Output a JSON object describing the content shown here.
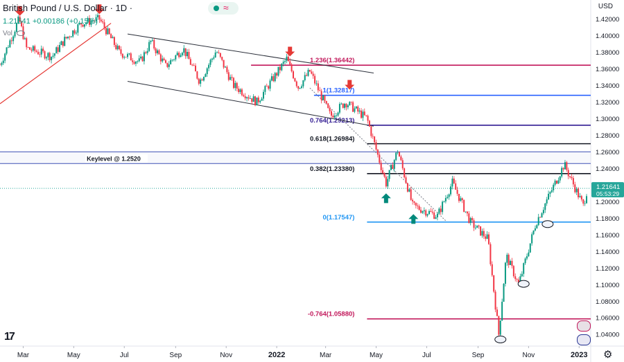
{
  "header": {
    "title": "British Pound / U.S. Dollar · 1D ·",
    "quote": "1.21641 +0.00186 (+0.15%)",
    "vol": "Vol",
    "currency": "USD"
  },
  "colors": {
    "up": "#089981",
    "down": "#f23645",
    "fib_blue": "#2962ff",
    "fib_navy": "#311b92",
    "fib_magenta": "#c2185b",
    "black": "#131722",
    "channel": "#2a2e39",
    "trend_red": "#e53935",
    "arrow_red": "#e53935",
    "arrow_green": "#00897b",
    "keylevel_band": "#3f51b5",
    "price_tag": "#26a69a"
  },
  "icons": [
    "eye-slash-icon",
    "tradingview-logo-icon",
    "gear-icon",
    "flag-icon"
  ],
  "chart_data": {
    "type": "candlestick",
    "title": "British Pound / U.S. Dollar · 1D",
    "last_price": "1.21641",
    "countdown": "05:53:29",
    "y_axis": {
      "range": [
        1.026,
        1.443
      ],
      "ticks": [
        "1.42000",
        "1.40000",
        "1.38000",
        "1.36000",
        "1.34000",
        "1.32000",
        "1.30000",
        "1.28000",
        "1.26000",
        "1.24000",
        "1.22000",
        "1.20000",
        "1.18000",
        "1.16000",
        "1.14000",
        "1.12000",
        "1.10000",
        "1.08000",
        "1.06000",
        "1.04000"
      ]
    },
    "x_axis": {
      "range": [
        "2021-02-01",
        "2023-01-15"
      ],
      "ticks": [
        {
          "label": "Mar",
          "date": "2021-03-01"
        },
        {
          "label": "May",
          "date": "2021-05-01"
        },
        {
          "label": "Jul",
          "date": "2021-07-01"
        },
        {
          "label": "Sep",
          "date": "2021-09-01"
        },
        {
          "label": "Nov",
          "date": "2021-11-01"
        },
        {
          "label": "2022",
          "date": "2022-01-01",
          "bold": true
        },
        {
          "label": "Mar",
          "date": "2022-03-01"
        },
        {
          "label": "May",
          "date": "2022-05-01"
        },
        {
          "label": "Jul",
          "date": "2022-07-01"
        },
        {
          "label": "Sep",
          "date": "2022-09-01"
        },
        {
          "label": "Nov",
          "date": "2022-11-01"
        },
        {
          "label": "2023",
          "date": "2023-01-01",
          "bold": true
        }
      ]
    },
    "price_path": [
      {
        "date": "2021-02-01",
        "close": 1.365
      },
      {
        "date": "2021-02-24",
        "close": 1.42
      },
      {
        "date": "2021-03-05",
        "close": 1.385
      },
      {
        "date": "2021-04-05",
        "close": 1.375
      },
      {
        "date": "2021-04-20",
        "close": 1.395
      },
      {
        "date": "2021-05-10",
        "close": 1.415
      },
      {
        "date": "2021-06-01",
        "close": 1.42
      },
      {
        "date": "2021-06-25",
        "close": 1.38
      },
      {
        "date": "2021-07-20",
        "close": 1.368
      },
      {
        "date": "2021-08-02",
        "close": 1.393
      },
      {
        "date": "2021-08-20",
        "close": 1.363
      },
      {
        "date": "2021-09-10",
        "close": 1.385
      },
      {
        "date": "2021-09-30",
        "close": 1.345
      },
      {
        "date": "2021-10-20",
        "close": 1.382
      },
      {
        "date": "2021-11-10",
        "close": 1.34
      },
      {
        "date": "2021-12-08",
        "close": 1.32
      },
      {
        "date": "2022-01-13",
        "close": 1.372
      },
      {
        "date": "2022-01-27",
        "close": 1.338
      },
      {
        "date": "2022-02-10",
        "close": 1.357
      },
      {
        "date": "2022-03-07",
        "close": 1.303
      },
      {
        "date": "2022-03-25",
        "close": 1.32
      },
      {
        "date": "2022-04-20",
        "close": 1.3
      },
      {
        "date": "2022-05-13",
        "close": 1.222
      },
      {
        "date": "2022-05-27",
        "close": 1.262
      },
      {
        "date": "2022-06-14",
        "close": 1.195
      },
      {
        "date": "2022-07-14",
        "close": 1.183
      },
      {
        "date": "2022-08-01",
        "close": 1.223
      },
      {
        "date": "2022-08-23",
        "close": 1.175
      },
      {
        "date": "2022-09-13",
        "close": 1.155
      },
      {
        "date": "2022-09-26",
        "close": 1.04
      },
      {
        "date": "2022-10-05",
        "close": 1.135
      },
      {
        "date": "2022-10-20",
        "close": 1.1
      },
      {
        "date": "2022-11-10",
        "close": 1.175
      },
      {
        "date": "2022-12-14",
        "close": 1.245
      },
      {
        "date": "2023-01-06",
        "close": 1.195
      },
      {
        "date": "2023-01-11",
        "close": 1.216
      }
    ],
    "fib_levels": [
      {
        "label": "1.236(1.36442)",
        "value": 1.36442,
        "color": "#c2185b",
        "x_start": "2021-12-01"
      },
      {
        "label": "1(1.32817)",
        "value": 1.32817,
        "color": "#2962ff",
        "x_start": "2022-02-15"
      },
      {
        "label": "0.764(1.29213)",
        "value": 1.29213,
        "color": "#311b92",
        "x_start": "2022-04-20"
      },
      {
        "label": "0.618(1.26984)",
        "value": 1.26984,
        "color": "#131722",
        "x_start": "2022-04-20"
      },
      {
        "label": "0.382(1.23380)",
        "value": 1.2338,
        "color": "#131722",
        "x_start": "2022-04-20"
      },
      {
        "label": "0(1.17547)",
        "value": 1.17547,
        "color": "#2196f3",
        "x_start": "2022-04-20"
      },
      {
        "label": "-0.764(1.05880)",
        "value": 1.0588,
        "color": "#c2185b",
        "x_start": "2022-04-20"
      }
    ],
    "keylevel": {
      "label": "Keylevel @ 1.2520",
      "value": 1.252,
      "band": [
        1.246,
        1.26
      ]
    },
    "channel_lines": [
      {
        "from": {
          "date": "2021-07-05",
          "value": 1.402
        },
        "to": {
          "date": "2022-04-28",
          "value": 1.355
        }
      },
      {
        "from": {
          "date": "2021-07-05",
          "value": 1.345
        },
        "to": {
          "date": "2022-04-28",
          "value": 1.291
        }
      }
    ],
    "trend_line": {
      "from": {
        "date": "2021-02-01",
        "value": 1.318
      },
      "to": {
        "date": "2021-06-15",
        "value": 1.415
      }
    },
    "dotted_line": {
      "from": {
        "date": "2022-02-10",
        "value": 1.337
      },
      "to": {
        "date": "2022-07-25",
        "value": 1.176
      }
    },
    "arrows": [
      {
        "dir": "down",
        "date": "2021-02-25",
        "value": 1.424,
        "color": "#e53935"
      },
      {
        "dir": "down",
        "date": "2021-06-01",
        "value": 1.426,
        "color": "#e53935"
      },
      {
        "dir": "down",
        "date": "2022-01-17",
        "value": 1.375,
        "color": "#e53935"
      },
      {
        "dir": "down",
        "date": "2022-03-30",
        "value": 1.335,
        "color": "#e53935"
      },
      {
        "dir": "up",
        "date": "2022-05-13",
        "value": 1.21,
        "color": "#00897b"
      },
      {
        "dir": "up",
        "date": "2022-06-15",
        "value": 1.185,
        "color": "#00897b"
      }
    ],
    "ellipses": [
      {
        "date": "2022-09-28",
        "value": 1.034
      },
      {
        "date": "2022-10-26",
        "value": 1.101
      },
      {
        "date": "2022-11-24",
        "value": 1.173
      }
    ],
    "grid": false,
    "legend": "none"
  }
}
